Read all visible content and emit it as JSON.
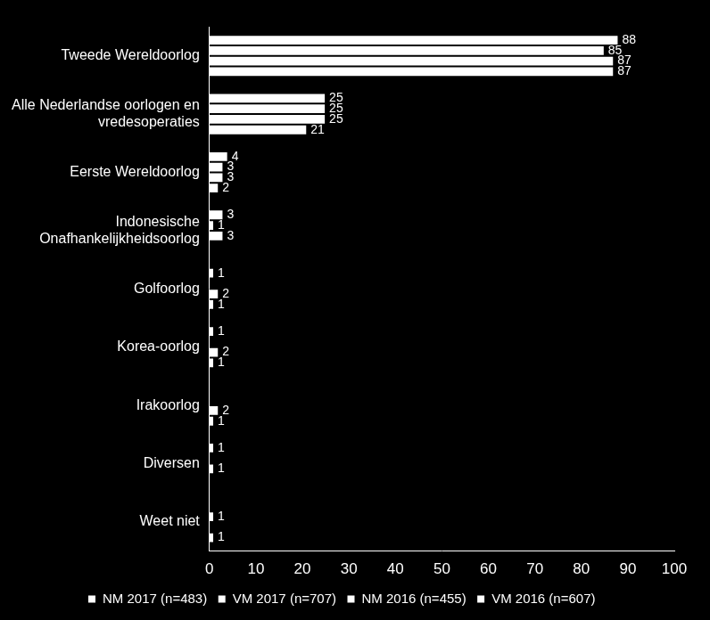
{
  "chart_data": {
    "type": "bar",
    "orientation": "horizontal",
    "categories": [
      "Tweede Wereldoorlog",
      "Alle Nederlandse oorlogen en vredesoperaties",
      "Eerste Wereldoorlog",
      "Indonesische Onafhankelijkheidsoorlog",
      "Golfoorlog",
      "Korea-oorlog",
      "Irakoorlog",
      "Diversen",
      "Weet niet"
    ],
    "series": [
      {
        "name": "NM 2017 (n=483)",
        "color": "#ffffff",
        "values": [
          88,
          25,
          4,
          3,
          1,
          1,
          null,
          1,
          null
        ]
      },
      {
        "name": "VM 2017 (n=707)",
        "color": "#ffffff",
        "values": [
          85,
          25,
          3,
          1,
          null,
          null,
          null,
          null,
          1
        ]
      },
      {
        "name": "NM 2016 (n=455)",
        "color": "#ffffff",
        "values": [
          87,
          25,
          3,
          3,
          2,
          2,
          2,
          1,
          null
        ]
      },
      {
        "name": "VM 2016 (n=607)",
        "color": "#ffffff",
        "values": [
          87,
          21,
          2,
          null,
          1,
          1,
          1,
          null,
          1
        ]
      }
    ],
    "xlim": [
      0,
      100
    ],
    "xticks": [
      0,
      10,
      20,
      30,
      40,
      50,
      60,
      70,
      80,
      90,
      100
    ],
    "grid": false,
    "legend": "bottom",
    "data_labels": true
  }
}
